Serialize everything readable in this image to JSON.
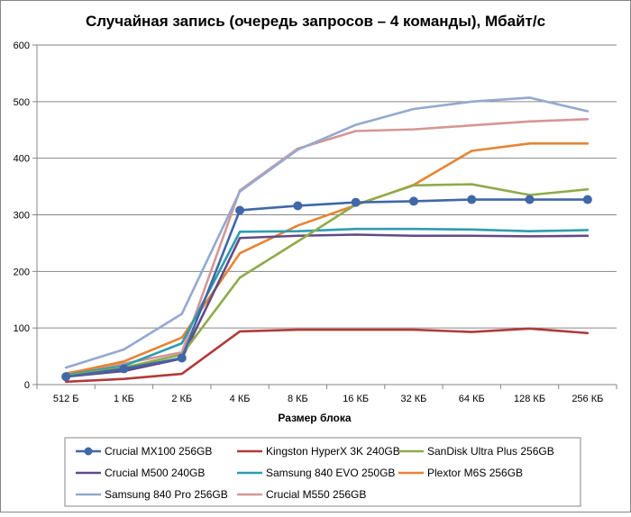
{
  "chart_data": {
    "type": "line",
    "title": "Случайная запись (очередь запросов – 4 команды), Мбайт/с",
    "xlabel": "Размер блока",
    "ylabel": "",
    "ylim": [
      0,
      600
    ],
    "yticks": [
      "0",
      "100",
      "200",
      "300",
      "400",
      "500",
      "600"
    ],
    "categories": [
      "512 Б",
      "1 КБ",
      "2 КБ",
      "4 КБ",
      "8 КБ",
      "16 КБ",
      "32 КБ",
      "64 КБ",
      "128 КБ",
      "256 КБ"
    ],
    "grid": "horizontal",
    "legend_position": "bottom",
    "series": [
      {
        "name": "Crucial MX100 256GB",
        "color": "#4067A8",
        "marker": "circle",
        "values": [
          14,
          28,
          47,
          308,
          316,
          322,
          324,
          327,
          327,
          327
        ]
      },
      {
        "name": "Kingston HyperX 3K 240GB",
        "color": "#B13A3A",
        "marker": "none",
        "values": [
          5,
          10,
          19,
          94,
          97,
          97,
          97,
          93,
          99,
          91
        ]
      },
      {
        "name": "SanDisk Ultra Plus 256GB",
        "color": "#8EAB4A",
        "marker": "none",
        "values": [
          16,
          30,
          53,
          189,
          253,
          318,
          352,
          354,
          335,
          345
        ]
      },
      {
        "name": "Crucial M500 240GB",
        "color": "#624A86",
        "marker": "none",
        "values": [
          14,
          24,
          46,
          259,
          263,
          265,
          263,
          263,
          262,
          263
        ]
      },
      {
        "name": "Samsung 840 EVO 250GB",
        "color": "#2E9CAF",
        "marker": "none",
        "values": [
          17,
          33,
          73,
          270,
          271,
          275,
          275,
          274,
          271,
          273
        ]
      },
      {
        "name": "Plextor M6S 256GB",
        "color": "#E68434",
        "marker": "none",
        "values": [
          19,
          41,
          83,
          232,
          281,
          317,
          353,
          413,
          426,
          426
        ]
      },
      {
        "name": "Samsung 840 Pro 256GB",
        "color": "#94A9D0",
        "marker": "none",
        "values": [
          30,
          62,
          125,
          341,
          415,
          459,
          487,
          500,
          507,
          483
        ]
      },
      {
        "name": "Crucial M550 256GB",
        "color": "#D59695",
        "marker": "none",
        "values": [
          20,
          37,
          57,
          343,
          417,
          448,
          451,
          458,
          465,
          469
        ]
      }
    ]
  }
}
